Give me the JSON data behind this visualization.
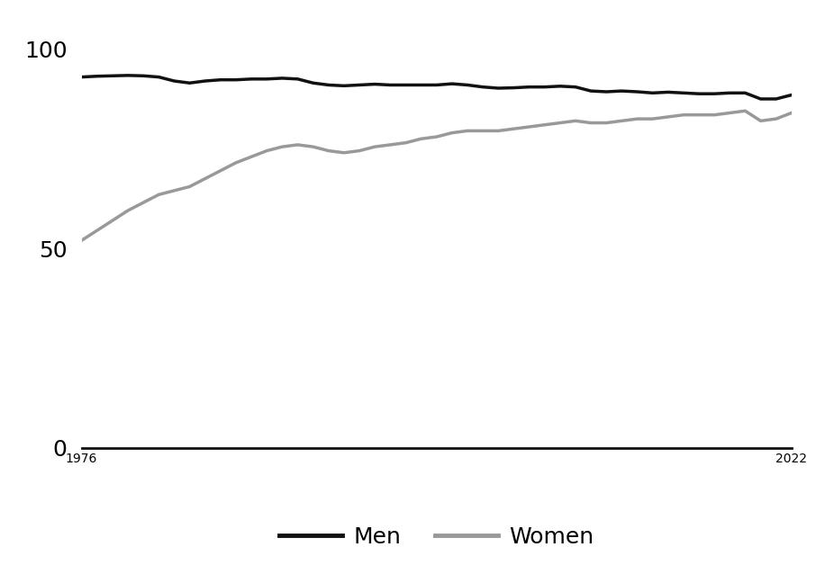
{
  "men_years": [
    1976,
    1977,
    1978,
    1979,
    1980,
    1981,
    1982,
    1983,
    1984,
    1985,
    1986,
    1987,
    1988,
    1989,
    1990,
    1991,
    1992,
    1993,
    1994,
    1995,
    1996,
    1997,
    1998,
    1999,
    2000,
    2001,
    2002,
    2003,
    2004,
    2005,
    2006,
    2007,
    2008,
    2009,
    2010,
    2011,
    2012,
    2013,
    2014,
    2015,
    2016,
    2017,
    2018,
    2019,
    2020,
    2021,
    2022
  ],
  "men_values": [
    93.0,
    93.2,
    93.3,
    93.4,
    93.3,
    93.0,
    92.0,
    91.5,
    92.0,
    92.3,
    92.3,
    92.5,
    92.5,
    92.7,
    92.5,
    91.5,
    91.0,
    90.8,
    91.0,
    91.2,
    91.0,
    91.0,
    91.0,
    91.0,
    91.3,
    91.0,
    90.5,
    90.2,
    90.3,
    90.5,
    90.5,
    90.7,
    90.5,
    89.5,
    89.3,
    89.5,
    89.3,
    89.0,
    89.2,
    89.0,
    88.8,
    88.8,
    89.0,
    89.0,
    87.5,
    87.5,
    88.5
  ],
  "women_years": [
    1976,
    1977,
    1978,
    1979,
    1980,
    1981,
    1982,
    1983,
    1984,
    1985,
    1986,
    1987,
    1988,
    1989,
    1990,
    1991,
    1992,
    1993,
    1994,
    1995,
    1996,
    1997,
    1998,
    1999,
    2000,
    2001,
    2002,
    2003,
    2004,
    2005,
    2006,
    2007,
    2008,
    2009,
    2010,
    2011,
    2012,
    2013,
    2014,
    2015,
    2016,
    2017,
    2018,
    2019,
    2020,
    2021,
    2022
  ],
  "women_values": [
    52.0,
    54.5,
    57.0,
    59.5,
    61.5,
    63.5,
    64.5,
    65.5,
    67.5,
    69.5,
    71.5,
    73.0,
    74.5,
    75.5,
    76.0,
    75.5,
    74.5,
    74.0,
    74.5,
    75.5,
    76.0,
    76.5,
    77.5,
    78.0,
    79.0,
    79.5,
    79.5,
    79.5,
    80.0,
    80.5,
    81.0,
    81.5,
    82.0,
    81.5,
    81.5,
    82.0,
    82.5,
    82.5,
    83.0,
    83.5,
    83.5,
    83.5,
    84.0,
    84.5,
    82.0,
    82.5,
    84.0
  ],
  "men_color": "#111111",
  "women_color": "#999999",
  "background_color": "#ffffff",
  "yticks": [
    0,
    50,
    100
  ],
  "xtick_labels": [
    "1976",
    "2022"
  ],
  "xtick_positions": [
    1976,
    2022
  ],
  "xlim": [
    1976,
    2022
  ],
  "ylim": [
    0,
    108
  ],
  "legend_men": "Men",
  "legend_women": "Women",
  "line_width": 2.5
}
